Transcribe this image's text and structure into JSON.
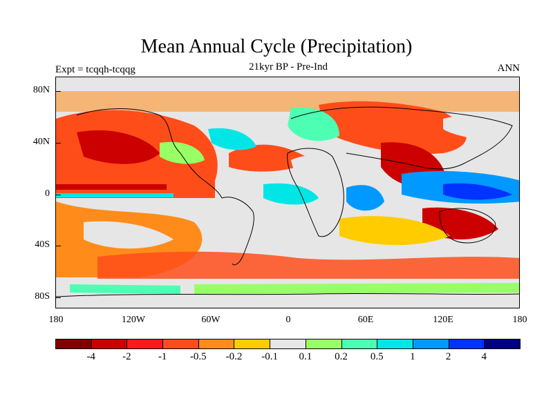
{
  "title": "Mean Annual Cycle (Precipitation)",
  "subtitle": "21kyr BP - Pre-Ind",
  "left_label": "Expt = tcqqh-tcqqg",
  "right_label": "ANN",
  "y_axis_labels": [
    "80N",
    "40N",
    "0",
    "40S",
    "80S"
  ],
  "x_axis_labels": [
    "180",
    "120W",
    "60W",
    "0",
    "60E",
    "120E",
    "180"
  ],
  "colorbar": {
    "colors": [
      "#800000",
      "#cc0000",
      "#ff1a1a",
      "#ff4d1a",
      "#ff8c1a",
      "#ffcc00",
      "#e6e6e6",
      "#99ff66",
      "#4dffb3",
      "#00e6e6",
      "#0099ff",
      "#0033ff",
      "#000080"
    ],
    "labels": [
      "-4",
      "-2",
      "-1",
      "-0.5",
      "-0.2",
      "-0.1",
      "0.1",
      "0.2",
      "0.5",
      "1",
      "2",
      "4"
    ]
  },
  "map_colors": {
    "background": "#e6e6e6",
    "strong_dry": "#cc0000",
    "dry": "#ff4d1a",
    "mild_dry": "#ff8c1a",
    "slight_dry": "#ffcc00",
    "slight_wet": "#99ff66",
    "wet": "#4dffb3",
    "wetter": "#00e6e6",
    "very_wet": "#0099ff",
    "strong_wet": "#0033ff"
  }
}
